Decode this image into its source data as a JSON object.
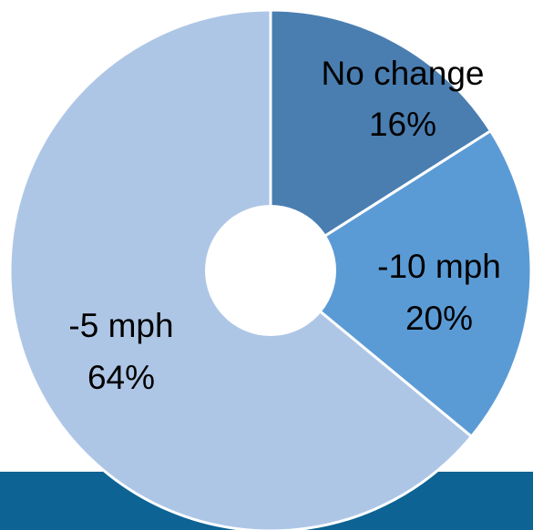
{
  "chart_data": {
    "type": "pie",
    "variant": "doughnut",
    "slices": [
      {
        "name": "No change",
        "percent_label": "16%",
        "value": 16,
        "color": "#4a7eb1"
      },
      {
        "name": "-10 mph",
        "percent_label": "20%",
        "value": 20,
        "color": "#5b9bd5"
      },
      {
        "name": "-5 mph",
        "percent_label": "64%",
        "value": 64,
        "color": "#aec6e6"
      }
    ],
    "start_angle_deg": 0,
    "direction": "clockwise",
    "slice_border_color": "#ffffff",
    "hole_color": "#ffffff"
  },
  "footer_bar": {
    "color": "#0d6393"
  }
}
